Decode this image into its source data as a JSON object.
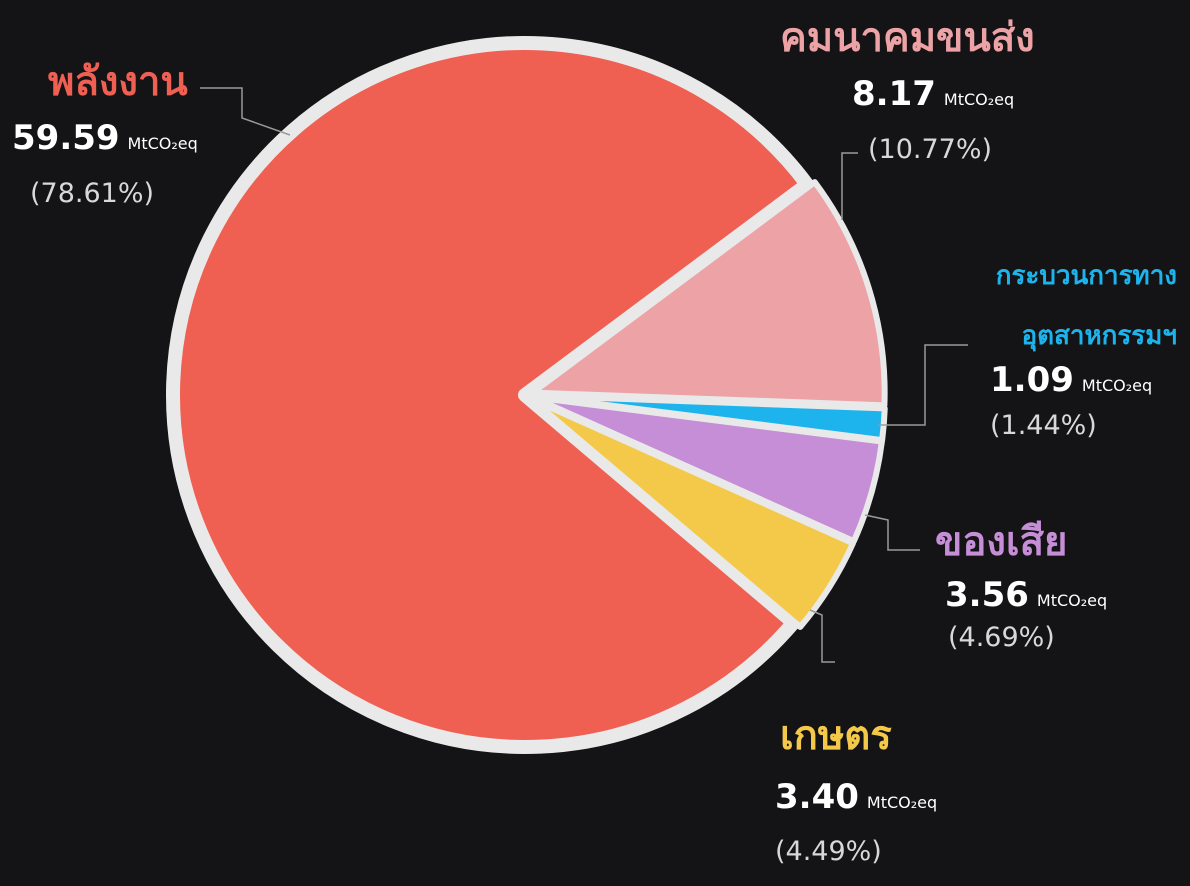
{
  "chart_data": {
    "type": "pie",
    "categories": [
      "พลังงาน",
      "คมนาคมขนส่ง",
      "กระบวนการทาง\nอุตสาหกรรมฯ",
      "ของเสีย",
      "เกษตร"
    ],
    "values": [
      59.59,
      8.17,
      1.09,
      3.56,
      3.4
    ],
    "value_labels": [
      "59.59",
      "8.17",
      "1.09",
      "3.56",
      "3.40"
    ],
    "percent_labels": [
      "(78.61%)",
      "(10.77%)",
      "(1.44%)",
      "(4.69%)",
      "(4.49%)"
    ],
    "unit": "MtCO₂eq",
    "colors": [
      "#ef5f52",
      "#eda2a6",
      "#1db4ee",
      "#c58ed6",
      "#f4c94a"
    ]
  }
}
